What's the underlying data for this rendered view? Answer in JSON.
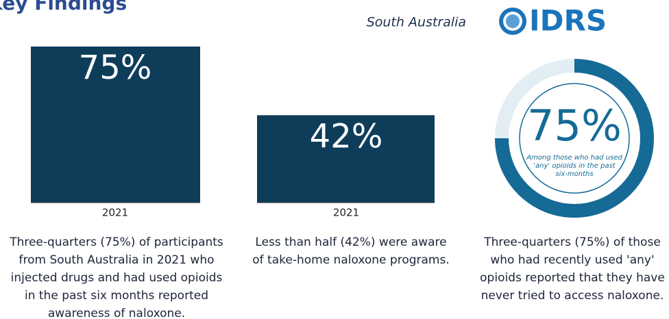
{
  "header": {
    "title": "Key Findings",
    "region": "South Australia",
    "logo": "IDRS"
  },
  "panels": [
    {
      "value": 75,
      "value_label": "75%",
      "year": "2021",
      "caption": [
        "Three-quarters (75%) of participants",
        "from South Australia in 2021 who",
        "injected drugs and had used opioids",
        "in the past six months reported",
        "awareness of naloxone."
      ]
    },
    {
      "value": 42,
      "value_label": "42%",
      "year": "2021",
      "caption": [
        "Less than half (42%) were aware",
        "of take-home naloxone programs."
      ]
    },
    {
      "value": 75,
      "value_label": "75%",
      "subtitle": [
        "Among those who had used",
        "'any' opioids in the past",
        "six-months"
      ],
      "caption": [
        "Three-quarters (75%) of those",
        "who had recently used 'any'",
        "opioids reported that they have",
        "never tried to access naloxone."
      ]
    }
  ]
}
